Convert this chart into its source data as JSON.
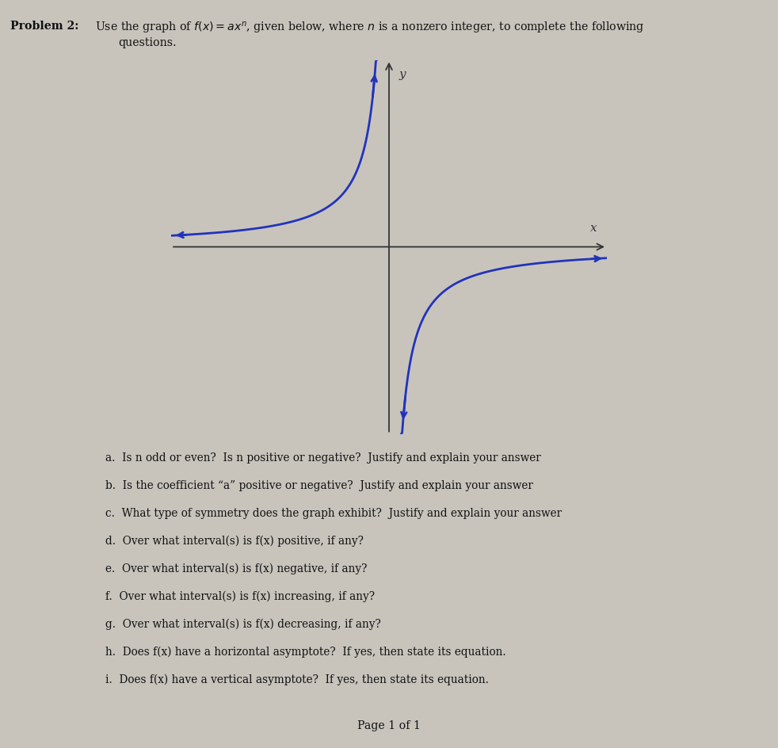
{
  "bg_color": "#c8c4bc",
  "text_color": "#111111",
  "curve_color": "#2233bb",
  "axis_color": "#333333",
  "x_label": "x",
  "y_label": "y",
  "questions_plain": [
    "a.  Is n odd or even?  Is n positive or negative?  Justify and explain your answer",
    "b.  Is the coefficient “a” positive or negative?  Justify and explain your answer",
    "c.  What type of symmetry does the graph exhibit?  Justify and explain your answer",
    "d.  Over what interval(s) is f(x) positive, if any?",
    "e.  Over what interval(s) is f(x) negative, if any?",
    "f.  Over what interval(s) is f(x) increasing, if any?",
    "g.  Over what interval(s) is f(x) decreasing, if any?",
    "h.  Does f(x) have a horizontal asymptote?  If yes, then state its equation.",
    "i.  Does f(x) have a vertical asymptote?  If yes, then state its equation."
  ],
  "footer_text": "Page 1 of 1"
}
